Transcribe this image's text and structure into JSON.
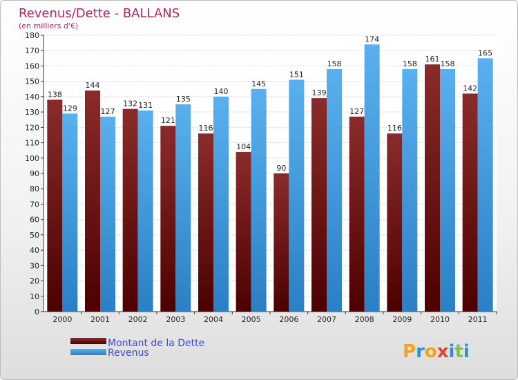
{
  "chart_data": {
    "type": "bar",
    "title": "Revenus/Dette - BALLANS",
    "subtitle": "(en milliers d'€)",
    "categories": [
      "2000",
      "2001",
      "2002",
      "2003",
      "2004",
      "2005",
      "2006",
      "2007",
      "2008",
      "2009",
      "2010",
      "2011"
    ],
    "series": [
      {
        "name": "Montant de la Dette",
        "color": "#7b1a1a",
        "values": [
          138,
          144,
          132,
          121,
          116,
          104,
          90,
          139,
          127,
          116,
          161,
          142
        ]
      },
      {
        "name": "Revenus",
        "color": "#4aa3e8",
        "values": [
          129,
          127,
          131,
          135,
          140,
          145,
          151,
          158,
          174,
          158,
          158,
          165
        ]
      }
    ],
    "ylim": [
      0,
      180
    ],
    "ytick_step": 10,
    "grid": true,
    "legend": "bottom-left"
  },
  "brand": {
    "letters": [
      "P",
      "r",
      "o",
      "x",
      "i",
      "t",
      "i"
    ],
    "colors": [
      "#f7a21b",
      "#2f8fd6",
      "#f7a21b",
      "#e8412c",
      "#2f8fd6",
      "#7cc242",
      "#2f8fd6"
    ]
  }
}
